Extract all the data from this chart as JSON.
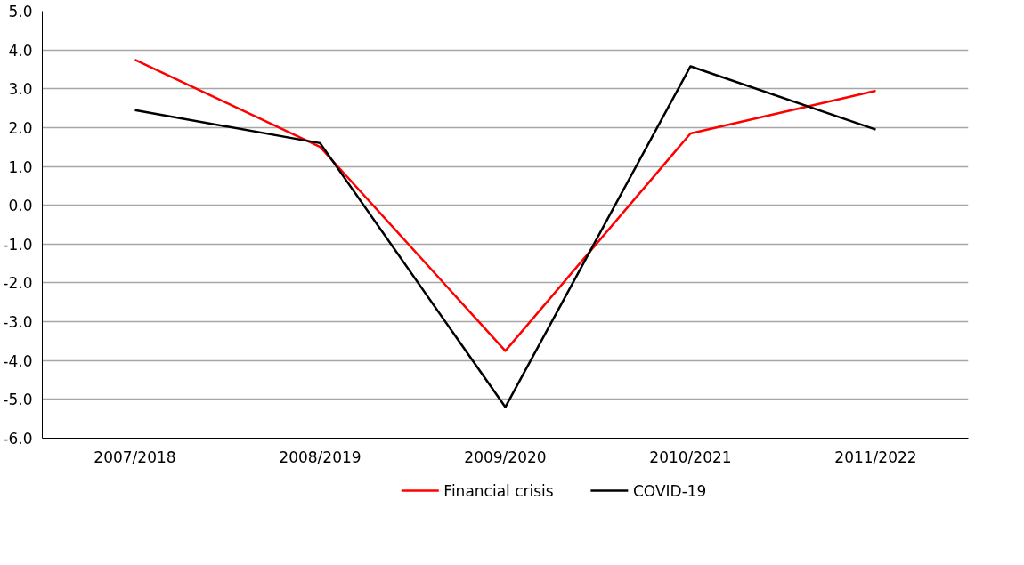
{
  "chart_data": {
    "type": "line",
    "categories": [
      "2007/2018",
      "2008/2019",
      "2009/2020",
      "2010/2021",
      "2011/2022"
    ],
    "series": [
      {
        "name": "Financial crisis",
        "color": "#ff0000",
        "values": [
          3.75,
          1.5,
          -3.75,
          1.85,
          2.95
        ]
      },
      {
        "name": "COVID-19",
        "color": "#000000",
        "values": [
          2.45,
          1.6,
          -5.2,
          3.58,
          1.95
        ]
      }
    ],
    "ylim": [
      -6,
      5
    ],
    "yticks": [
      {
        "value": -6,
        "label": "-6.0"
      },
      {
        "value": -5,
        "label": "-5.0"
      },
      {
        "value": -4,
        "label": "-4.0"
      },
      {
        "value": -3,
        "label": "-3.0"
      },
      {
        "value": -2,
        "label": "-2.0"
      },
      {
        "value": -1,
        "label": "-1.0"
      },
      {
        "value": 0,
        "label": "0.0"
      },
      {
        "value": 1,
        "label": "1.0"
      },
      {
        "value": 2,
        "label": "2.0"
      },
      {
        "value": 3,
        "label": "3.0"
      },
      {
        "value": 4,
        "label": "4.0"
      },
      {
        "value": 5,
        "label": "5.0"
      }
    ],
    "grid": "y",
    "legend": "bottom",
    "marker": "none",
    "line_style": "solid"
  }
}
